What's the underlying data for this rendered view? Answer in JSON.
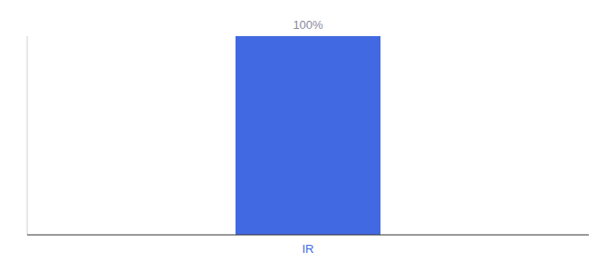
{
  "chart_data": {
    "type": "bar",
    "categories": [
      "IR"
    ],
    "values": [
      100
    ],
    "value_labels": [
      "100%"
    ],
    "color": "#4169e1",
    "ylim": [
      0,
      100
    ],
    "data_labels": true,
    "tick_labels": "x",
    "grid": false
  }
}
